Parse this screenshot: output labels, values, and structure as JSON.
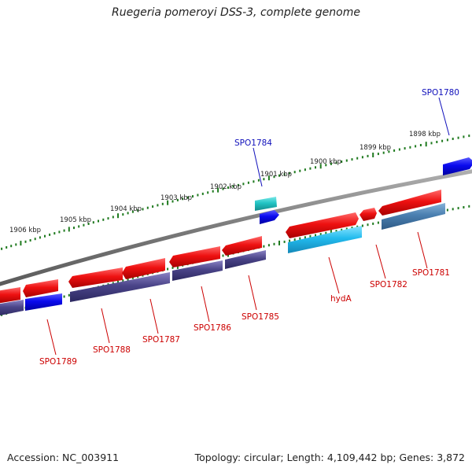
{
  "title": "Ruegeria pomeroyi DSS-3, complete genome",
  "footer": {
    "accession": "Accession: NC_003911",
    "summary": "Topology: circular; Length: 4,109,442 bp; Genes: 3,872"
  },
  "scale": {
    "unit": "kbp",
    "labels": [
      "1906 kbp",
      "1905 kbp",
      "1904 kbp",
      "1903 kbp",
      "1902 kbp",
      "1901 kbp",
      "1900 kbp",
      "1899 kbp",
      "1898 kbp"
    ]
  },
  "colors": {
    "forward_cds": "#ee1111",
    "reverse_gene": "#4a4488",
    "blue_gene": "#0a0aee",
    "cyan_gene": "#22bbee",
    "teal_gene": "#22c4c4",
    "steel_gene": "#4a7fb0",
    "backbone": "#808080",
    "tick": "#1f7a1f",
    "label_red": "#cc0000",
    "label_blue": "#1010bb"
  },
  "gene_labels": [
    {
      "name": "SPO1780",
      "color": "blue"
    },
    {
      "name": "SPO1784",
      "color": "blue"
    },
    {
      "name": "SPO1781",
      "color": "red"
    },
    {
      "name": "SPO1782",
      "color": "red"
    },
    {
      "name": "hydA",
      "color": "red"
    },
    {
      "name": "SPO1785",
      "color": "red"
    },
    {
      "name": "SPO1786",
      "color": "red"
    },
    {
      "name": "SPO1787",
      "color": "red"
    },
    {
      "name": "SPO1788",
      "color": "red"
    },
    {
      "name": "SPO1789",
      "color": "red"
    }
  ]
}
